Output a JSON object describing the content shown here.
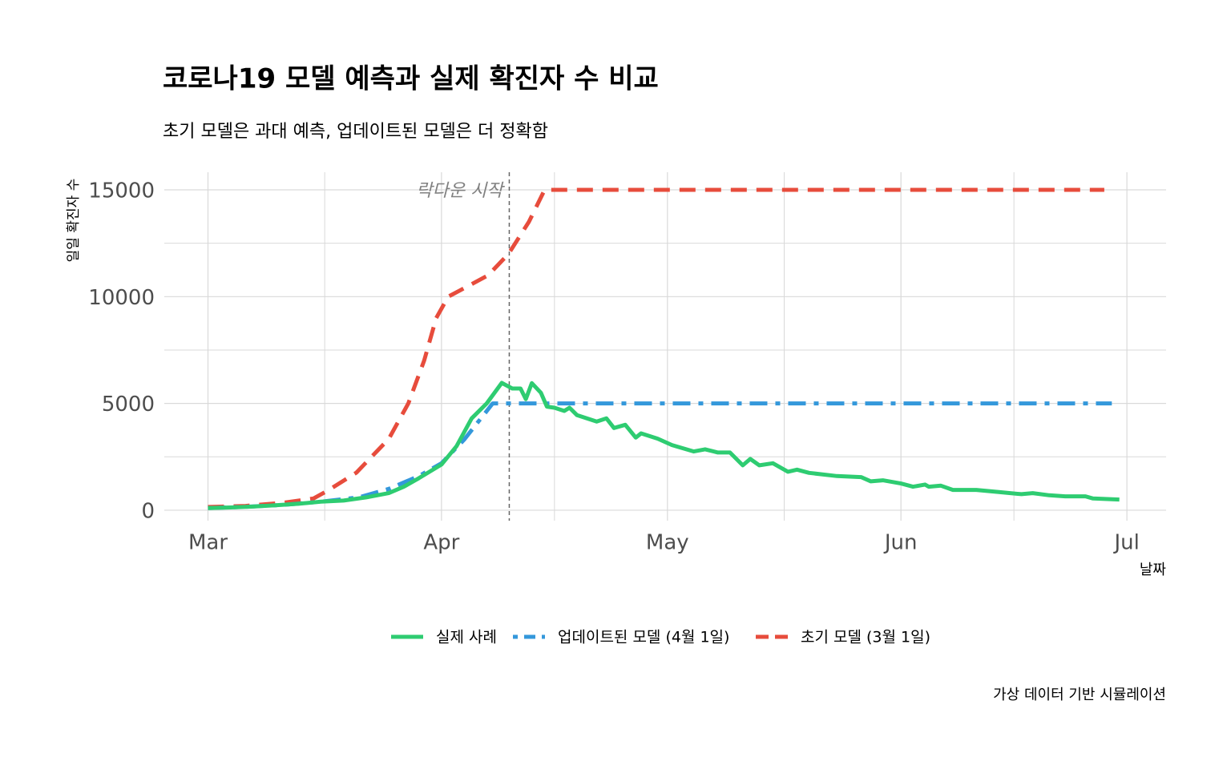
{
  "chart_data": {
    "type": "line",
    "title": "코로나19 모델 예측과 실제 확진자 수 비교",
    "subtitle": "초기 모델은 과대 예측, 업데이트된 모델은 더 정확함",
    "x_label": "날짜",
    "y_label": "일일 확진자 수",
    "caption": "가상 데이터 기반 시뮬레이션",
    "xlim": [
      -5.8,
      127.2
    ],
    "xticks": [
      {
        "value": 0,
        "label": "Mar"
      },
      {
        "value": 31,
        "label": "Apr"
      },
      {
        "value": 61,
        "label": "May"
      },
      {
        "value": 92,
        "label": "Jun"
      },
      {
        "value": 122,
        "label": "Jul"
      }
    ],
    "ylim": [
      -490,
      15825
    ],
    "yticks": [
      0,
      5000,
      10000,
      15000
    ],
    "grid": true,
    "legend": "bottom",
    "annotations": [
      {
        "text": "락다운 시작",
        "x": 40,
        "y": 15000
      }
    ],
    "series": [
      {
        "name": "실제 사례",
        "color": "#2ecc71",
        "dash": "solid",
        "x": [
          0,
          3,
          6,
          9,
          12,
          15,
          18,
          21,
          24,
          26,
          28,
          31,
          33,
          35,
          37,
          39,
          40.4,
          41.5,
          42.2,
          43,
          44.2,
          45,
          46,
          47.3,
          48,
          49,
          51.6,
          52.9,
          53.9,
          55.4,
          56.8,
          57.5,
          59.7,
          61.6,
          64.5,
          66,
          67.7,
          69.3,
          71,
          72,
          73.2,
          75,
          77,
          78.2,
          79.8,
          83.5,
          86.7,
          88,
          89.6,
          92,
          93.6,
          95.2,
          95.7,
          97.3,
          98.9,
          102,
          105,
          108,
          109.5,
          111.7,
          113.8,
          116.5,
          117.5,
          121
        ],
        "values": [
          100,
          130,
          170,
          230,
          300,
          400,
          450,
          600,
          800,
          1100,
          1500,
          2140,
          3000,
          4300,
          5000,
          5960,
          5700,
          5700,
          5200,
          5950,
          5500,
          4850,
          4800,
          4650,
          4800,
          4450,
          4150,
          4300,
          3850,
          4000,
          3400,
          3600,
          3350,
          3050,
          2750,
          2850,
          2700,
          2700,
          2100,
          2400,
          2100,
          2200,
          1800,
          1900,
          1750,
          1600,
          1550,
          1350,
          1400,
          1250,
          1100,
          1200,
          1100,
          1150,
          950,
          950,
          850,
          750,
          800,
          700,
          650,
          650,
          550,
          500
        ]
      },
      {
        "name": "업데이트된 모델 (4월 1일)",
        "color": "#3498db",
        "dash": "dotdash",
        "x": [
          0,
          5,
          10,
          15,
          20,
          24,
          28,
          31,
          34,
          37.8,
          120
        ],
        "values": [
          100,
          160,
          250,
          400,
          600,
          1000,
          1600,
          2200,
          3300,
          5000,
          5000
        ]
      },
      {
        "name": "초기 모델 (3월 1일)",
        "color": "#e74c3c",
        "dash": "dashed",
        "x": [
          0,
          5,
          10,
          14,
          16,
          19.7,
          24,
          26.6,
          28.7,
          30.3,
          31.9,
          33.5,
          37.2,
          39.9,
          42.6,
          44.7,
          119
        ],
        "values": [
          150,
          200,
          350,
          550,
          940,
          1760,
          3340,
          5000,
          7000,
          9000,
          10000,
          10300,
          11000,
          12000,
          13500,
          15000,
          15000
        ]
      }
    ]
  }
}
